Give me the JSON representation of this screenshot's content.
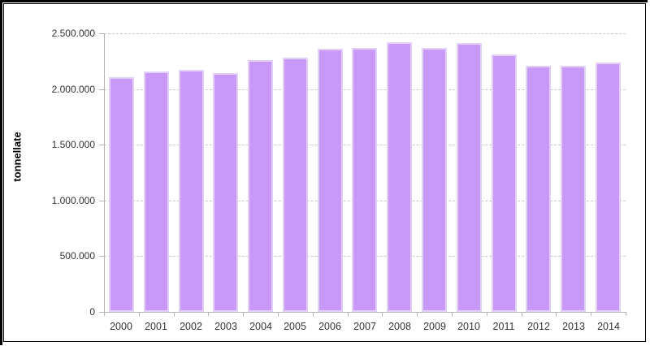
{
  "chart_data": {
    "type": "bar",
    "title": "",
    "xlabel": "",
    "ylabel": "tonnellate",
    "categories": [
      "2000",
      "2001",
      "2002",
      "2003",
      "2004",
      "2005",
      "2006",
      "2007",
      "2008",
      "2009",
      "2010",
      "2011",
      "2012",
      "2013",
      "2014"
    ],
    "values": [
      2110000,
      2160000,
      2170000,
      2140000,
      2260000,
      2280000,
      2360000,
      2370000,
      2420000,
      2370000,
      2410000,
      2310000,
      2210000,
      2210000,
      2240000
    ],
    "ylim": [
      0,
      2500000
    ],
    "y_ticks": [
      {
        "value": 0,
        "label": "0"
      },
      {
        "value": 500000,
        "label": "500.000"
      },
      {
        "value": 1000000,
        "label": "1.000.000"
      },
      {
        "value": 1500000,
        "label": "1.500.000"
      },
      {
        "value": 2000000,
        "label": "2.000.000"
      },
      {
        "value": 2500000,
        "label": "2.500.000"
      }
    ],
    "grid": "horizontal-dashed",
    "legend": "none",
    "colors": {
      "bar_fill": "#C899F7",
      "bar_border": "#E3D1FA",
      "axis": "#B5B5B5",
      "gridline": "#C9C9C9",
      "tick_text": "#333333",
      "frame_border": "#000000"
    }
  }
}
